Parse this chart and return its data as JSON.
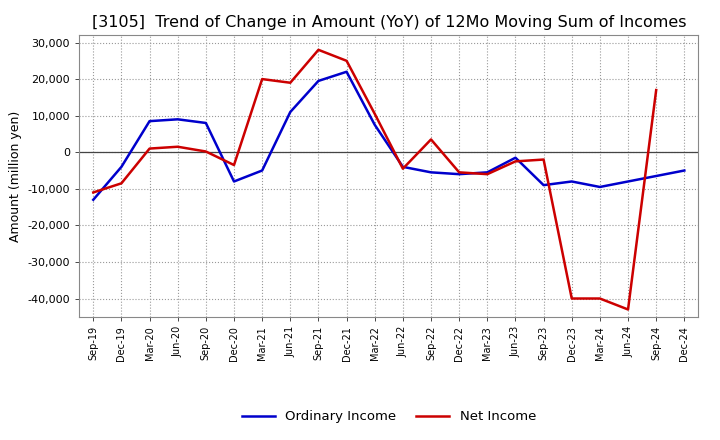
{
  "title": "[3105]  Trend of Change in Amount (YoY) of 12Mo Moving Sum of Incomes",
  "ylabel": "Amount (million yen)",
  "labels": [
    "Sep-19",
    "Dec-19",
    "Mar-20",
    "Jun-20",
    "Sep-20",
    "Dec-20",
    "Mar-21",
    "Jun-21",
    "Sep-21",
    "Dec-21",
    "Mar-22",
    "Jun-22",
    "Sep-22",
    "Dec-22",
    "Mar-23",
    "Jun-23",
    "Sep-23",
    "Dec-23",
    "Mar-24",
    "Jun-24",
    "Sep-24",
    "Dec-24"
  ],
  "ordinary_income": [
    -13000,
    -4000,
    8500,
    9000,
    8000,
    -8000,
    -5000,
    11000,
    19500,
    22000,
    7500,
    -4000,
    -5500,
    -6000,
    -5500,
    -1500,
    -9000,
    -8000,
    -9500,
    -8000,
    -6500,
    -5000
  ],
  "net_income": [
    -11000,
    -8500,
    1000,
    1500,
    200,
    -3500,
    20000,
    19000,
    28000,
    25000,
    10500,
    -4500,
    3500,
    -5500,
    -6000,
    -2500,
    -2000,
    -40000,
    -40000,
    -43000,
    17000,
    null
  ],
  "ordinary_color": "#0000cc",
  "net_color": "#cc0000",
  "ylim": [
    -45000,
    32000
  ],
  "yticks": [
    -40000,
    -30000,
    -20000,
    -10000,
    0,
    10000,
    20000,
    30000
  ],
  "background_color": "#ffffff",
  "grid_color": "#999999",
  "title_fontsize": 11.5,
  "axis_fontsize": 9,
  "tick_fontsize": 8,
  "legend_fontsize": 9.5
}
